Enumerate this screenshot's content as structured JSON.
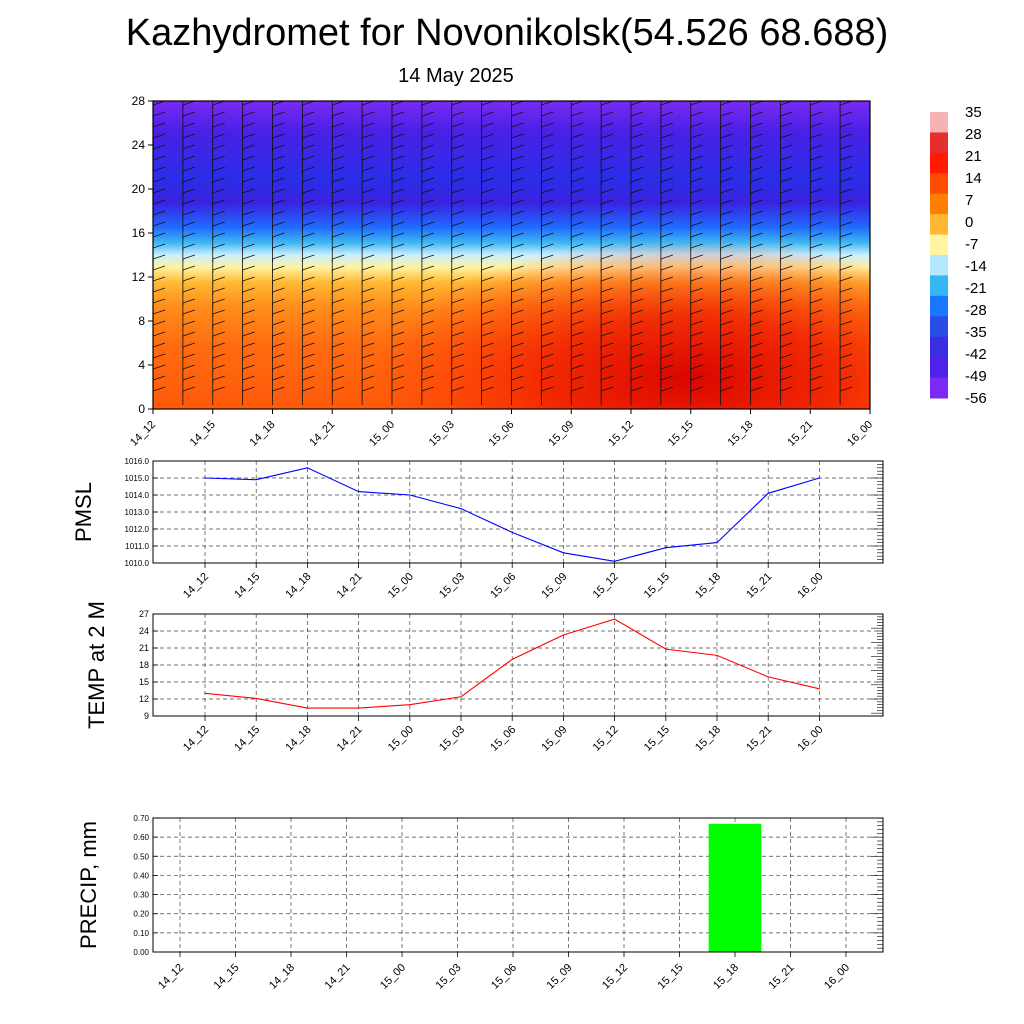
{
  "title": "Kazhydromet for Novonikolsk(54.526 68.688)",
  "subtitle": "14 May 2025",
  "chart_data": [
    {
      "type": "heatmap",
      "name": "vertical-cross-section",
      "x_categories": [
        "14_12",
        "14_15",
        "14_18",
        "14_21",
        "15_00",
        "15_03",
        "15_06",
        "15_09",
        "15_12",
        "15_15",
        "15_18",
        "15_21",
        "16_00"
      ],
      "y_ticks": [
        0,
        4,
        8,
        12,
        16,
        20,
        24,
        28
      ],
      "ylim": [
        0,
        28
      ],
      "colorbar_labels": [
        "35",
        "28",
        "21",
        "14",
        "7",
        "0",
        "-7",
        "-14",
        "-21",
        "-28",
        "-35",
        "-42",
        "-49",
        "-56"
      ],
      "colorbar_colors": [
        "#f6b3b3",
        "#e62e2e",
        "#ff1a00",
        "#ff4d00",
        "#ff8000",
        "#ffb833",
        "#fff5a0",
        "#b3e8ff",
        "#33b8f5",
        "#1a75ff",
        "#2a4de8",
        "#3a2ee0",
        "#5022e8",
        "#7a2af2"
      ]
    },
    {
      "type": "line",
      "ylabel": "PMSL",
      "categories": [
        "14_12",
        "14_15",
        "14_18",
        "14_21",
        "15_00",
        "15_03",
        "15_06",
        "15_09",
        "15_12",
        "15_15",
        "15_18",
        "15_21",
        "16_00"
      ],
      "values": [
        1015.0,
        1014.9,
        1015.6,
        1014.2,
        1014.0,
        1013.2,
        1011.8,
        1010.6,
        1010.1,
        1010.9,
        1011.2,
        1014.1,
        1015.0
      ],
      "ylim": [
        1010.0,
        1016.0
      ],
      "yticks": [
        "1010.0",
        "1011.0",
        "1012.0",
        "1013.0",
        "1014.0",
        "1015.0",
        "1016.0"
      ],
      "color": "#0000ff"
    },
    {
      "type": "line",
      "ylabel": "TEMP at 2 M",
      "categories": [
        "14_12",
        "14_15",
        "14_18",
        "14_21",
        "15_00",
        "15_03",
        "15_06",
        "15_09",
        "15_12",
        "15_15",
        "15_18",
        "15_21",
        "16_00"
      ],
      "values": [
        13.0,
        12.1,
        10.4,
        10.4,
        11.0,
        12.4,
        19.0,
        23.3,
        26.1,
        20.8,
        19.7,
        15.9,
        13.8
      ],
      "ylim": [
        9,
        27
      ],
      "yticks": [
        "9",
        "12",
        "15",
        "18",
        "21",
        "24",
        "27"
      ],
      "color": "#ff0000"
    },
    {
      "type": "bar",
      "ylabel": "PRECIP, mm",
      "categories": [
        "14_12",
        "14_15",
        "14_18",
        "14_21",
        "15_00",
        "15_03",
        "15_06",
        "15_09",
        "15_12",
        "15_15",
        "15_18",
        "15_21",
        "16_00"
      ],
      "values": [
        0,
        0,
        0,
        0,
        0,
        0,
        0,
        0,
        0,
        0,
        0.67,
        0,
        0
      ],
      "ylim": [
        0,
        0.7
      ],
      "yticks": [
        "0.00",
        "0.10",
        "0.20",
        "0.30",
        "0.40",
        "0.50",
        "0.60",
        "0.70"
      ],
      "color": "#00ff00"
    }
  ]
}
